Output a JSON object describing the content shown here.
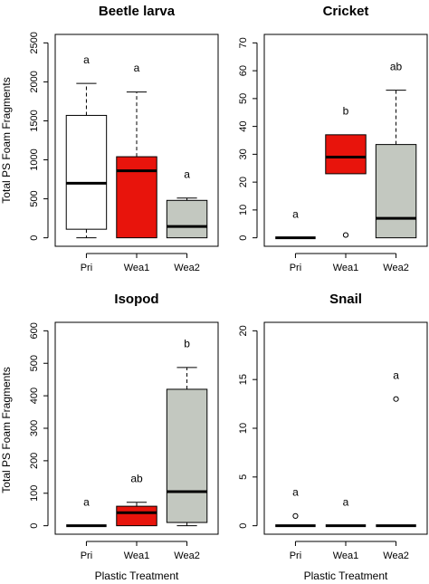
{
  "figure": {
    "ylabel": "Total PS Foam Fragments",
    "xlabel": "Plastic Treatment"
  },
  "colors": {
    "Pri": "#ffffff",
    "Wea1": "#e8140c",
    "Wea2": "#c3c8c0"
  },
  "chart_data": [
    {
      "type": "box",
      "title": "Beetle larva",
      "categories": [
        "Pri",
        "Wea1",
        "Wea2"
      ],
      "ylim": [
        0,
        2500
      ],
      "yticks": [
        0,
        500,
        1000,
        1500,
        2000,
        2500
      ],
      "ylabel": "Total PS Foam Fragments",
      "xlabel": "",
      "boxes": [
        {
          "category": "Pri",
          "min": 0,
          "q1": 110,
          "median": 700,
          "q3": 1570,
          "max": 1980,
          "outliers": [],
          "letter": "a"
        },
        {
          "category": "Wea1",
          "min": 0,
          "q1": 0,
          "median": 860,
          "q3": 1040,
          "max": 1870,
          "outliers": [],
          "letter": "a"
        },
        {
          "category": "Wea2",
          "min": 0,
          "q1": 0,
          "median": 145,
          "q3": 480,
          "max": 510,
          "outliers": [],
          "letter": "a"
        }
      ]
    },
    {
      "type": "box",
      "title": "Cricket",
      "categories": [
        "Pri",
        "Wea1",
        "Wea2"
      ],
      "ylim": [
        0,
        70
      ],
      "yticks": [
        0,
        10,
        20,
        30,
        40,
        50,
        60,
        70
      ],
      "ylabel": "",
      "xlabel": "",
      "boxes": [
        {
          "category": "Pri",
          "min": 0,
          "q1": 0,
          "median": 0,
          "q3": 0,
          "max": 0,
          "outliers": [],
          "letter": "a"
        },
        {
          "category": "Wea1",
          "min": 23,
          "q1": 23,
          "median": 29,
          "q3": 37,
          "max": 37,
          "outliers": [
            1
          ],
          "letter": "b"
        },
        {
          "category": "Wea2",
          "min": 0,
          "q1": 0,
          "median": 7,
          "q3": 33.5,
          "max": 53,
          "outliers": [],
          "letter": "ab"
        }
      ]
    },
    {
      "type": "box",
      "title": "Isopod",
      "categories": [
        "Pri",
        "Wea1",
        "Wea2"
      ],
      "ylim": [
        0,
        600
      ],
      "yticks": [
        0,
        100,
        200,
        300,
        400,
        500,
        600
      ],
      "ylabel": "Total PS Foam Fragments",
      "xlabel": "Plastic Treatment",
      "boxes": [
        {
          "category": "Pri",
          "min": 0,
          "q1": 0,
          "median": 0,
          "q3": 0,
          "max": 0,
          "outliers": [],
          "letter": "a"
        },
        {
          "category": "Wea1",
          "min": 0,
          "q1": 0,
          "median": 40,
          "q3": 60,
          "max": 72,
          "outliers": [],
          "letter": "ab"
        },
        {
          "category": "Wea2",
          "min": 0,
          "q1": 10,
          "median": 105,
          "q3": 420,
          "max": 487,
          "outliers": [],
          "letter": "b"
        }
      ]
    },
    {
      "type": "box",
      "title": "Snail",
      "categories": [
        "Pri",
        "Wea1",
        "Wea2"
      ],
      "ylim": [
        0,
        20
      ],
      "yticks": [
        0,
        5,
        10,
        15,
        20
      ],
      "ylabel": "",
      "xlabel": "Plastic Treatment",
      "boxes": [
        {
          "category": "Pri",
          "min": 0,
          "q1": 0,
          "median": 0,
          "q3": 0,
          "max": 0,
          "outliers": [
            1
          ],
          "letter": "a"
        },
        {
          "category": "Wea1",
          "min": 0,
          "q1": 0,
          "median": 0,
          "q3": 0,
          "max": 0,
          "outliers": [],
          "letter": "a"
        },
        {
          "category": "Wea2",
          "min": 0,
          "q1": 0,
          "median": 0,
          "q3": 0,
          "max": 0,
          "outliers": [
            13
          ],
          "letter": "a"
        }
      ]
    }
  ]
}
